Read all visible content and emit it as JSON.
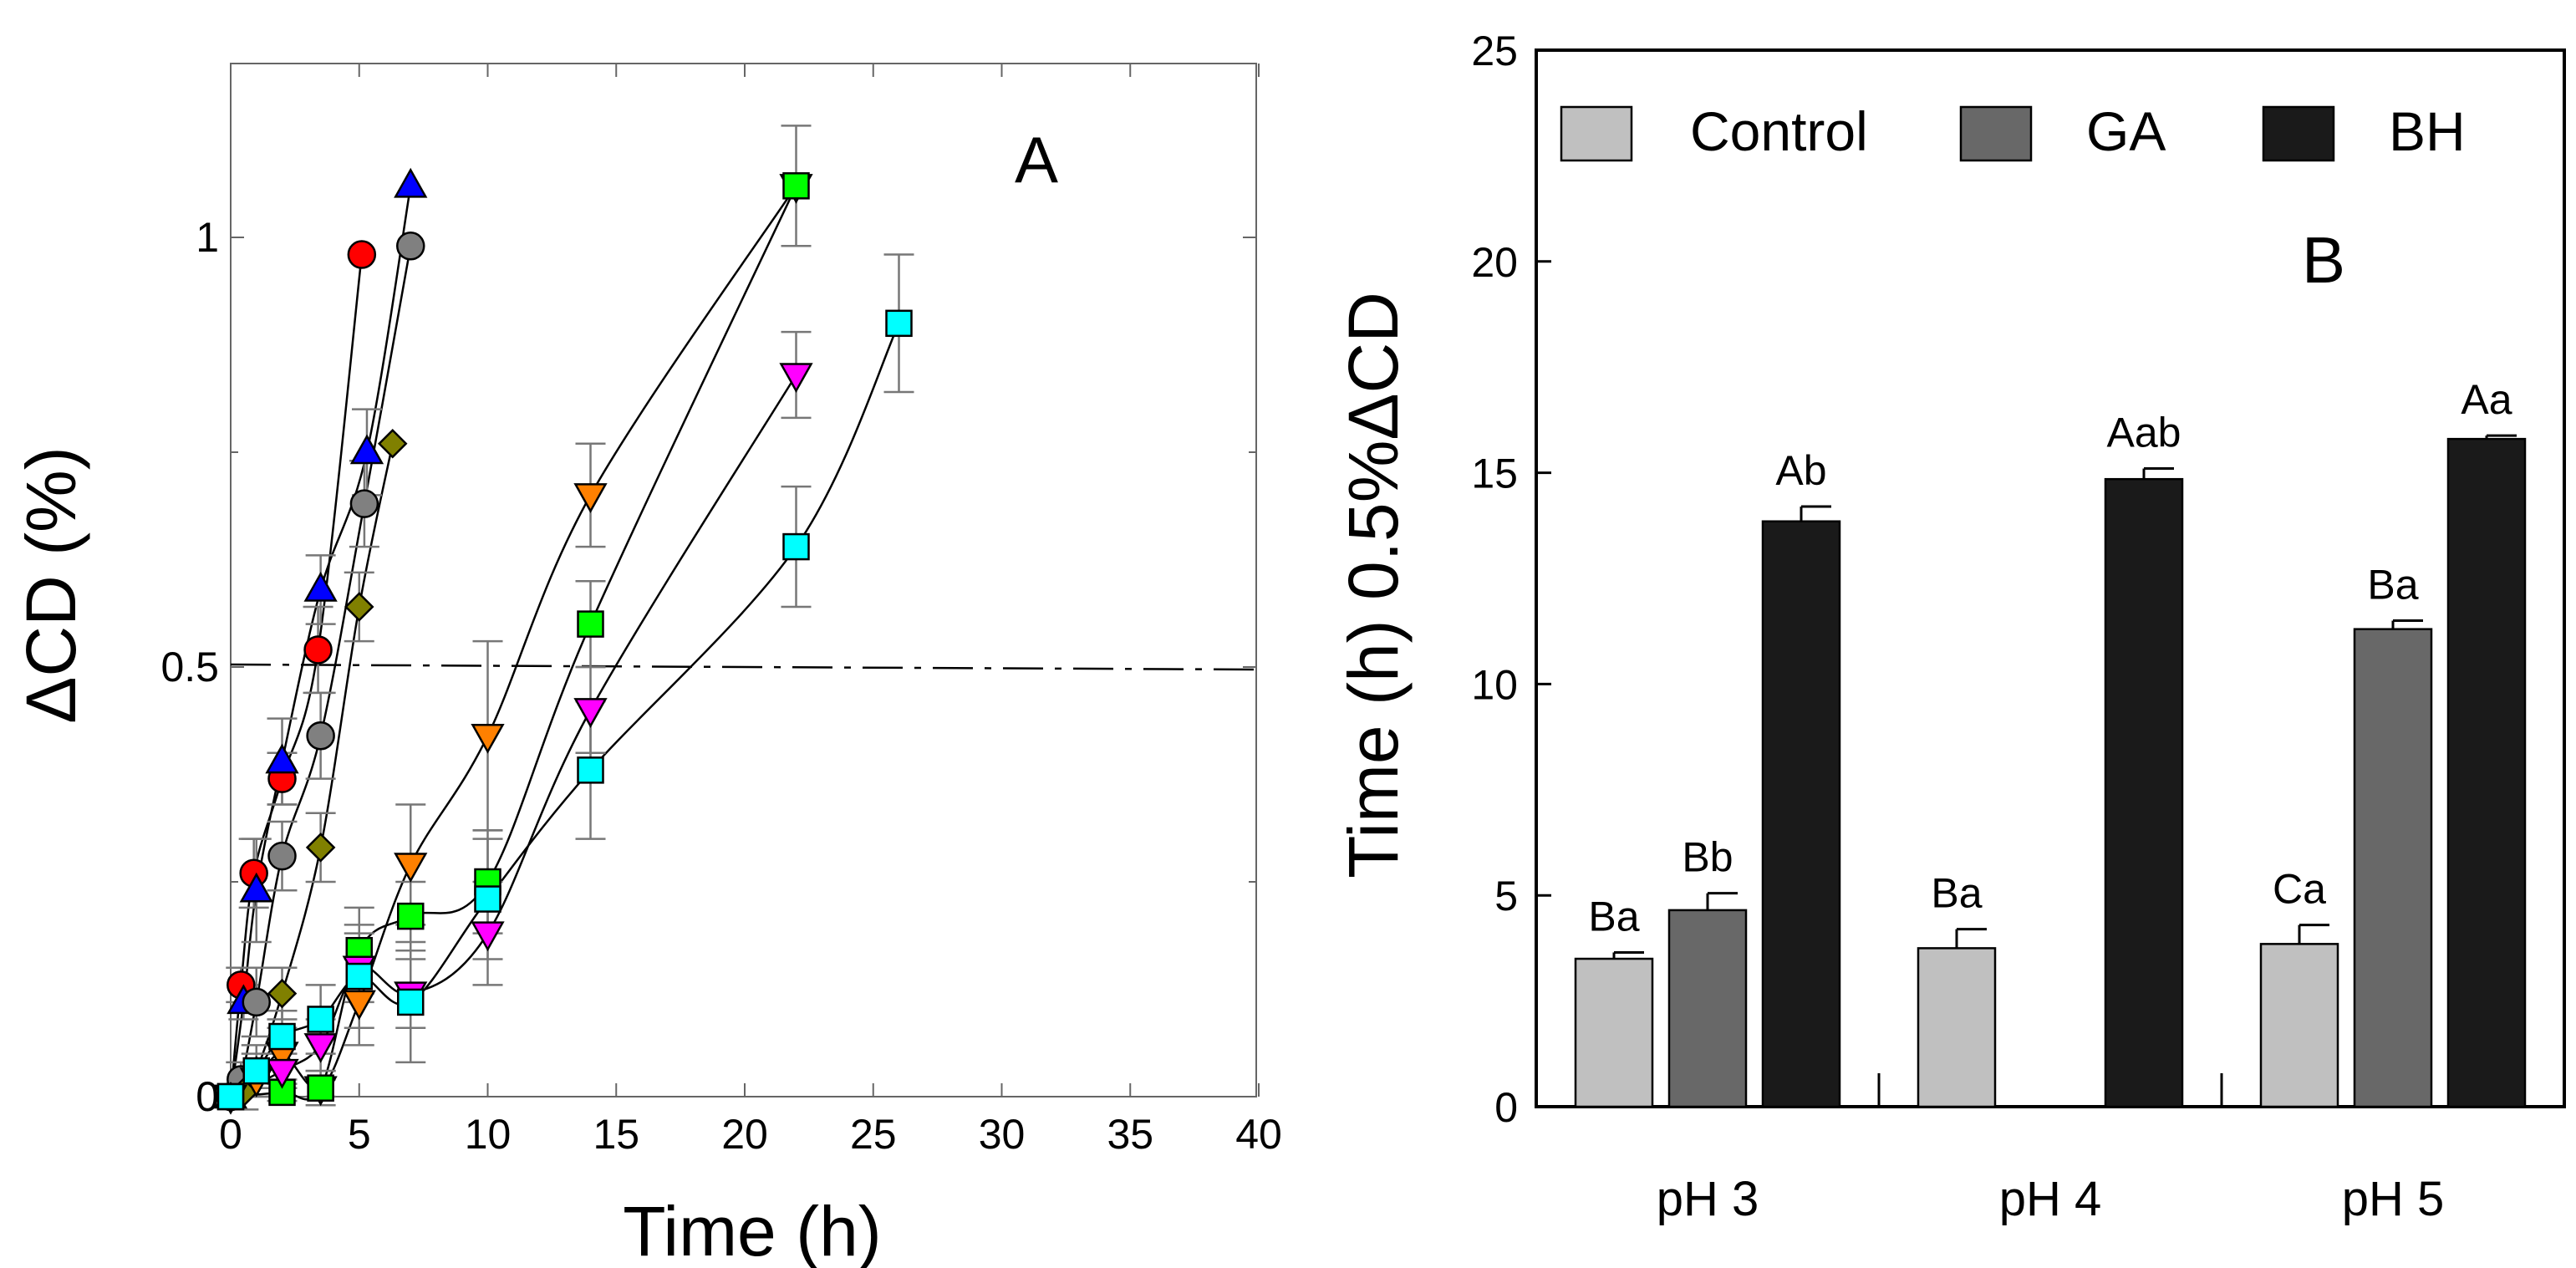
{
  "panel_a": {
    "chart_data": {
      "type": "scatter",
      "title": "",
      "panel_label": "A",
      "xlabel": "Time (h)",
      "ylabel": "ΔCD (%)",
      "xlim": [
        0,
        40
      ],
      "ylim": [
        0,
        1.2
      ],
      "xticks": [
        "0",
        "5",
        "10",
        "15",
        "20",
        "25",
        "30",
        "35",
        "40"
      ],
      "yticks": [
        "0",
        "0.5",
        "1"
      ],
      "reference_line": {
        "y": 0.5,
        "style": "dash-dot"
      },
      "series": [
        {
          "name": "red circles",
          "marker": "circle",
          "color": "#ff0000",
          "points": [
            [
              0,
              0
            ],
            [
              0.4,
              0.13
            ],
            [
              0.9,
              0.26
            ],
            [
              2,
              0.37
            ],
            [
              3.4,
              0.52
            ],
            [
              5.1,
              0.98
            ]
          ],
          "err": [
            0,
            0.02,
            0.04,
            0.03,
            0.05,
            0
          ]
        },
        {
          "name": "blue triangles",
          "marker": "triangle-up",
          "color": "#0000ff",
          "points": [
            [
              0,
              0
            ],
            [
              0.5,
              0.11
            ],
            [
              1,
              0.24
            ],
            [
              2,
              0.39
            ],
            [
              3.5,
              0.59
            ],
            [
              5.3,
              0.75
            ],
            [
              7,
              1.06
            ]
          ],
          "err": [
            0,
            0.02,
            0.06,
            0.05,
            0.04,
            0.05,
            0
          ]
        },
        {
          "name": "grey circles",
          "marker": "circle",
          "color": "#808080",
          "points": [
            [
              0,
              0
            ],
            [
              0.4,
              0.02
            ],
            [
              1,
              0.11
            ],
            [
              2,
              0.28
            ],
            [
              3.5,
              0.42
            ],
            [
              5.2,
              0.69
            ],
            [
              7,
              0.99
            ]
          ],
          "err": [
            0,
            0.02,
            0.04,
            0.04,
            0.05,
            0.05,
            0
          ]
        },
        {
          "name": "olive diamonds",
          "marker": "diamond",
          "color": "#808000",
          "points": [
            [
              0,
              0
            ],
            [
              0.5,
              0.005
            ],
            [
              1,
              0.03
            ],
            [
              2,
              0.12
            ],
            [
              3.5,
              0.29
            ],
            [
              5,
              0.57
            ],
            [
              6.3,
              0.76
            ]
          ],
          "err": [
            0,
            0.02,
            0.03,
            0.03,
            0.04,
            0.04,
            0
          ]
        },
        {
          "name": "orange triangles",
          "marker": "triangle-down",
          "color": "#ff8000",
          "points": [
            [
              0,
              0
            ],
            [
              1,
              0.02
            ],
            [
              2,
              0.05
            ],
            [
              3.5,
              0.01
            ],
            [
              5,
              0.11
            ],
            [
              7,
              0.27
            ],
            [
              10,
              0.42
            ],
            [
              14,
              0.7
            ],
            [
              22,
              1.06
            ]
          ],
          "err": [
            0,
            0.02,
            0.03,
            0.02,
            0.05,
            0.07,
            0.11,
            0.06,
            0
          ]
        },
        {
          "name": "green squares",
          "marker": "square",
          "color": "#00ff00",
          "points": [
            [
              0,
              0
            ],
            [
              2,
              0.005
            ],
            [
              3.5,
              0.01
            ],
            [
              5,
              0.17
            ],
            [
              7,
              0.21
            ],
            [
              10,
              0.25
            ],
            [
              14,
              0.55
            ],
            [
              22,
              1.06
            ]
          ],
          "err": [
            0,
            0.01,
            0.01,
            0.05,
            0.04,
            0.06,
            0.05,
            0.07
          ]
        },
        {
          "name": "magenta triangles",
          "marker": "triangle-down",
          "color": "#ff00ff",
          "points": [
            [
              0,
              0
            ],
            [
              2,
              0.03
            ],
            [
              3.5,
              0.06
            ],
            [
              5,
              0.15
            ],
            [
              7,
              0.12
            ],
            [
              10,
              0.19
            ],
            [
              14,
              0.45
            ],
            [
              22,
              0.84
            ]
          ],
          "err": [
            0,
            0.02,
            0.03,
            0.04,
            0.04,
            0.06,
            0.05,
            0.05
          ]
        },
        {
          "name": "cyan squares",
          "marker": "square",
          "color": "#00ffff",
          "points": [
            [
              0,
              0
            ],
            [
              1,
              0.03
            ],
            [
              2,
              0.07
            ],
            [
              3.5,
              0.09
            ],
            [
              5,
              0.14
            ],
            [
              7,
              0.11
            ],
            [
              10,
              0.23
            ],
            [
              14,
              0.38
            ],
            [
              22,
              0.64
            ],
            [
              26,
              0.9
            ]
          ],
          "err": [
            0,
            0.02,
            0.03,
            0.04,
            0.06,
            0.07,
            0.07,
            0.08,
            0.07,
            0.08
          ]
        }
      ]
    }
  },
  "panel_b": {
    "chart_data": {
      "type": "bar",
      "title": "",
      "panel_label": "B",
      "xlabel": "",
      "ylabel": "Time (h) 0.5%ΔCD",
      "ylim": [
        0,
        25
      ],
      "yticks": [
        "0",
        "5",
        "10",
        "15",
        "20",
        "25"
      ],
      "categories": [
        "pH 3",
        "pH 4",
        "pH 5"
      ],
      "legend": {
        "position": "top",
        "entries": [
          "Control",
          "GA",
          "BH"
        ]
      },
      "series": [
        {
          "name": "Control",
          "color": "#c0c0c0",
          "values": [
            3.5,
            3.75,
            3.85
          ],
          "err": [
            0.15,
            0.45,
            0.45
          ],
          "labels": [
            "Ba",
            "Ba",
            "Ca"
          ]
        },
        {
          "name": "GA",
          "color": "#686868",
          "values": [
            4.65,
            null,
            11.3
          ],
          "err": [
            0.4,
            null,
            0.2
          ],
          "labels": [
            "Bb",
            "",
            "Ba"
          ]
        },
        {
          "name": "BH",
          "color": "#1a1a1a",
          "values": [
            13.85,
            14.85,
            15.8
          ],
          "err": [
            0.35,
            0.25,
            0.08
          ],
          "labels": [
            "Ab",
            "Aab",
            "Aa"
          ]
        }
      ]
    }
  }
}
